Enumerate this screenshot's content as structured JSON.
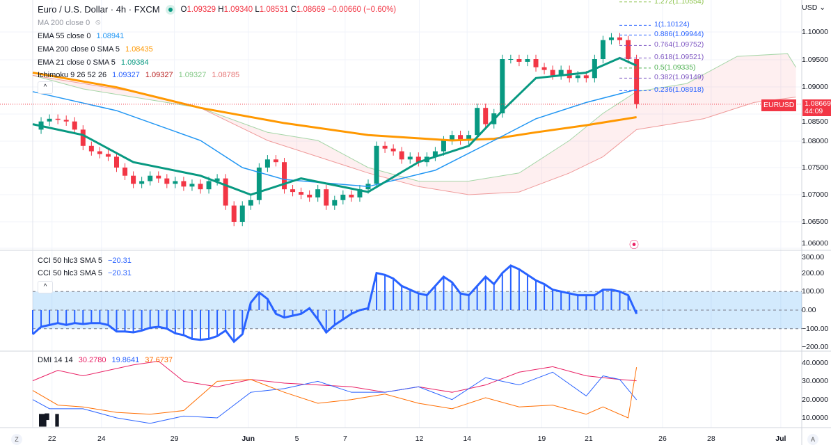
{
  "header": {
    "symbol_title": "Euro / U.S. Dollar · 4h · FXCM",
    "o_label": "O",
    "o": "1.09329",
    "h_label": "H",
    "h": "1.09340",
    "l_label": "L",
    "l": "1.08531",
    "c_label": "C",
    "c": "1.08669",
    "change": "−0.00660 (−0.60%)"
  },
  "indicators": [
    {
      "name": "MA 200 close 0",
      "values": []
    },
    {
      "name": "EMA 55 close 0",
      "values": [
        "1.08941"
      ]
    },
    {
      "name": "EMA 200 close 0 SMA 5",
      "values": [
        "1.08435"
      ]
    },
    {
      "name": "EMA 21 close 0 SMA 5",
      "values": [
        "1.09384"
      ]
    },
    {
      "name": "Ichimoku 9 26 52 26",
      "values": [
        "1.09327",
        "1.09327",
        "1.09327",
        "1.08785"
      ]
    }
  ],
  "cci_legend": [
    {
      "name": "CCI 50 hlc3 SMA 5",
      "value": "−20.31"
    },
    {
      "name": "CCI 50 hlc3 SMA 5",
      "value": "−20.31"
    }
  ],
  "dmi_legend": {
    "name": "DMI 14 14",
    "values": [
      "30.2780",
      "19.8641",
      "37.6737"
    ]
  },
  "price_axis": {
    "currency": "USD",
    "labels": [
      "1.10000",
      "1.09500",
      "1.09000",
      "1.08500",
      "1.08000",
      "1.07500",
      "1.07000",
      "1.06500",
      "1.06000"
    ],
    "symbol_tag": "EURUSD",
    "last_price": "1.08669",
    "countdown": "44:09"
  },
  "cci_axis": [
    "300.00",
    "200.00",
    "100.00",
    "0.00",
    "−100.00",
    "−200.00"
  ],
  "dmi_axis": [
    "40.0000",
    "30.0000",
    "20.0000",
    "10.0000"
  ],
  "time_axis": {
    "labels": [
      "22",
      "24",
      "29",
      "Jun",
      "5",
      "7",
      "12",
      "14",
      "19",
      "21",
      "26",
      "28",
      "Jul"
    ],
    "z_label": "Z",
    "a_label": "A"
  },
  "fib_levels": [
    {
      "label": "1.272(1.10554)",
      "price": 1.10554,
      "color": "#8bc34a"
    },
    {
      "label": "1(1.10124)",
      "price": 1.10124,
      "color": "#2962ff"
    },
    {
      "label": "0.886(1.09944)",
      "price": 1.09944,
      "color": "#2962ff"
    },
    {
      "label": "0.764(1.09752)",
      "price": 1.09752,
      "color": "#7e57c2"
    },
    {
      "label": "0.618(1.09521)",
      "price": 1.09521,
      "color": "#7e57c2"
    },
    {
      "label": "0.5(1.09335)",
      "price": 1.09335,
      "color": "#4caf50"
    },
    {
      "label": "0.382(1.09149)",
      "price": 1.09149,
      "color": "#7e57c2"
    },
    {
      "label": "0.236(1.08918)",
      "price": 1.08918,
      "color": "#2962ff"
    }
  ],
  "chart_data": {
    "type": "candlestick",
    "title": "Euro / U.S. Dollar · 4h · FXCM",
    "ylim": [
      1.06,
      1.1
    ],
    "time_ticks": [
      2.3,
      8.2,
      16.9,
      25.7,
      31.5,
      37.25,
      46.1,
      51.8,
      60.7,
      66.3,
      75.1,
      80.9,
      89.2
    ],
    "close": [
      1.082,
      1.0835,
      1.084,
      1.0838,
      1.0835,
      1.082,
      1.079,
      1.078,
      1.0775,
      1.077,
      1.075,
      1.0735,
      1.072,
      1.0725,
      1.0735,
      1.073,
      1.072,
      1.0725,
      1.0715,
      1.072,
      1.071,
      1.0725,
      1.073,
      1.068,
      1.065,
      1.068,
      1.069,
      1.075,
      1.0765,
      1.076,
      1.071,
      1.0705,
      1.07,
      1.0695,
      1.071,
      1.068,
      1.069,
      1.07,
      1.0695,
      1.071,
      1.072,
      1.079,
      1.0785,
      1.078,
      1.0765,
      1.077,
      1.076,
      1.077,
      1.078,
      1.08,
      1.081,
      1.08,
      1.081,
      1.086,
      1.083,
      1.085,
      1.095,
      1.095,
      1.0945,
      1.095,
      1.0935,
      1.093,
      1.092,
      1.093,
      1.0915,
      1.092,
      1.0915,
      1.095,
      1.0985,
      1.099,
      1.0985,
      1.095,
      1.0867
    ],
    "ema200": [
      [
        0,
        1.0925
      ],
      [
        10,
        1.0898
      ],
      [
        20,
        1.086
      ],
      [
        30,
        1.0832
      ],
      [
        40,
        1.081
      ],
      [
        50,
        1.08
      ],
      [
        55,
        1.0803
      ],
      [
        60,
        1.0815
      ],
      [
        66,
        1.0828
      ],
      [
        72,
        1.0843
      ]
    ],
    "ema55": [
      [
        0,
        1.089
      ],
      [
        10,
        1.0855
      ],
      [
        20,
        1.08
      ],
      [
        25,
        1.075
      ],
      [
        30,
        1.0728
      ],
      [
        40,
        1.0715
      ],
      [
        48,
        1.0745
      ],
      [
        55,
        1.08
      ],
      [
        60,
        1.084
      ],
      [
        66,
        1.087
      ],
      [
        72,
        1.0894
      ]
    ],
    "ema21": [
      [
        0,
        1.083
      ],
      [
        6,
        1.081
      ],
      [
        12,
        1.076
      ],
      [
        20,
        1.0735
      ],
      [
        26,
        1.07
      ],
      [
        32,
        1.073
      ],
      [
        40,
        1.0705
      ],
      [
        46,
        1.076
      ],
      [
        52,
        1.079
      ],
      [
        56,
        1.0855
      ],
      [
        60,
        1.0915
      ],
      [
        66,
        1.0925
      ],
      [
        70,
        1.0952
      ],
      [
        72,
        1.0938
      ]
    ],
    "kumo_a": [
      [
        0,
        1.092
      ],
      [
        6,
        1.0895
      ],
      [
        12,
        1.088
      ],
      [
        20,
        1.086
      ],
      [
        28,
        1.0815
      ],
      [
        34,
        1.08
      ],
      [
        40,
        1.075
      ],
      [
        46,
        1.0725
      ],
      [
        52,
        1.0725
      ],
      [
        58,
        1.074
      ],
      [
        64,
        1.08
      ],
      [
        68,
        1.085
      ],
      [
        72,
        1.089
      ],
      [
        78,
        1.0905
      ],
      [
        84,
        1.0955
      ],
      [
        90,
        1.096
      ],
      [
        91,
        1.0935
      ]
    ],
    "kumo_b": [
      [
        0,
        1.092
      ],
      [
        6,
        1.0905
      ],
      [
        12,
        1.089
      ],
      [
        20,
        1.086
      ],
      [
        28,
        1.08
      ],
      [
        34,
        1.077
      ],
      [
        40,
        1.074
      ],
      [
        46,
        1.0715
      ],
      [
        52,
        1.07
      ],
      [
        58,
        1.0705
      ],
      [
        64,
        1.074
      ],
      [
        68,
        1.077
      ],
      [
        72,
        1.082
      ],
      [
        80,
        1.084
      ],
      [
        86,
        1.087
      ],
      [
        91,
        1.088
      ]
    ],
    "cci": [
      -130,
      -90,
      -80,
      -70,
      -80,
      -70,
      -75,
      -70,
      -70,
      -80,
      -115,
      -115,
      -120,
      -110,
      -95,
      -90,
      -100,
      -125,
      -135,
      -155,
      -160,
      -155,
      -140,
      -110,
      -170,
      -130,
      40,
      95,
      60,
      -20,
      -40,
      -30,
      -20,
      10,
      -50,
      -120,
      -80,
      -50,
      -20,
      0,
      10,
      200,
      190,
      170,
      130,
      110,
      90,
      80,
      130,
      180,
      150,
      90,
      80,
      130,
      180,
      140,
      200,
      240,
      220,
      190,
      160,
      140,
      110,
      100,
      90,
      80,
      80,
      80,
      110,
      110,
      100,
      80,
      -20
    ],
    "cci_ylim": [
      -200,
      300
    ],
    "dmi_plus": [
      [
        0,
        30.3
      ],
      [
        3,
        36
      ],
      [
        6,
        33
      ],
      [
        9,
        36
      ],
      [
        12,
        39
      ],
      [
        15,
        41
      ],
      [
        18,
        30
      ],
      [
        22,
        27
      ],
      [
        26,
        31
      ],
      [
        30,
        29
      ],
      [
        34,
        28
      ],
      [
        38,
        27
      ],
      [
        42,
        24
      ],
      [
        46,
        27
      ],
      [
        50,
        24
      ],
      [
        54,
        28
      ],
      [
        58,
        35
      ],
      [
        62,
        38
      ],
      [
        66,
        33
      ],
      [
        70,
        31
      ],
      [
        72,
        30.3
      ]
    ],
    "dmi_minus": [
      [
        0,
        20
      ],
      [
        2,
        15
      ],
      [
        6,
        15
      ],
      [
        10,
        10
      ],
      [
        14,
        7
      ],
      [
        18,
        11
      ],
      [
        22,
        10
      ],
      [
        26,
        24
      ],
      [
        30,
        26
      ],
      [
        34,
        30
      ],
      [
        38,
        24
      ],
      [
        42,
        24
      ],
      [
        46,
        27
      ],
      [
        50,
        20
      ],
      [
        54,
        32
      ],
      [
        58,
        28
      ],
      [
        62,
        35
      ],
      [
        66,
        22
      ],
      [
        68,
        33
      ],
      [
        70,
        31
      ],
      [
        72,
        19.9
      ]
    ],
    "dmi_adx": [
      [
        0,
        25
      ],
      [
        3,
        17
      ],
      [
        6,
        16
      ],
      [
        10,
        13
      ],
      [
        14,
        12
      ],
      [
        18,
        14
      ],
      [
        22,
        30
      ],
      [
        26,
        31
      ],
      [
        30,
        24
      ],
      [
        34,
        18
      ],
      [
        38,
        20
      ],
      [
        42,
        23
      ],
      [
        46,
        18
      ],
      [
        50,
        15
      ],
      [
        54,
        21
      ],
      [
        58,
        16
      ],
      [
        62,
        17
      ],
      [
        66,
        12
      ],
      [
        68,
        16
      ],
      [
        71,
        10
      ],
      [
        72,
        37.7
      ]
    ],
    "dmi_ylim": [
      5,
      45
    ]
  }
}
